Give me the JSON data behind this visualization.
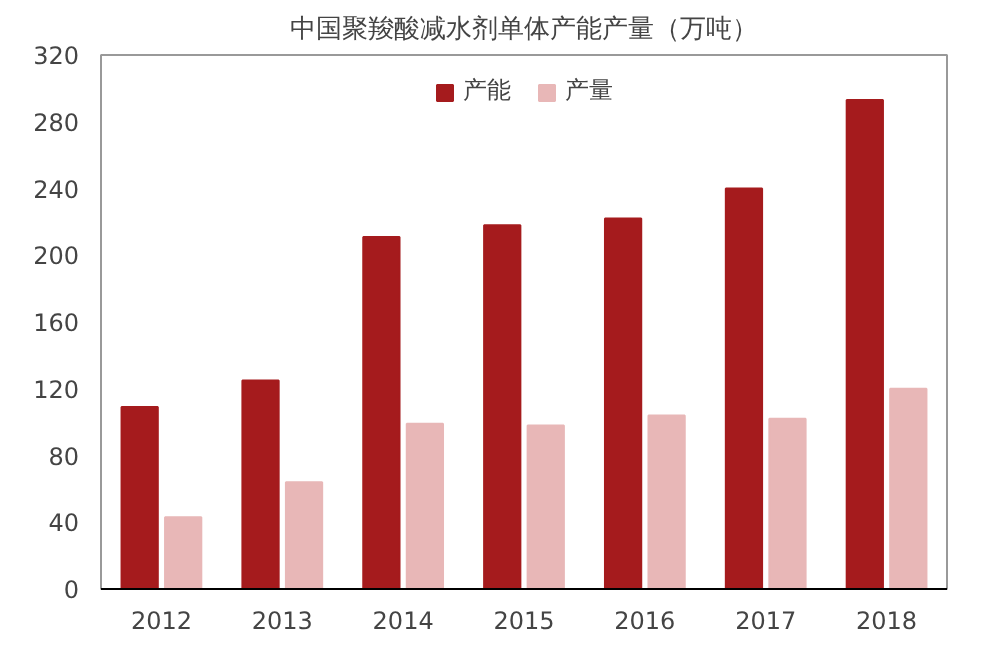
{
  "chart_data": {
    "type": "bar",
    "title": "中国聚羧酸减水剂单体产能产量（万吨）",
    "categories": [
      "2012",
      "2013",
      "2014",
      "2015",
      "2016",
      "2017",
      "2018"
    ],
    "series": [
      {
        "name": "产能",
        "color": "#a51b1d",
        "values": [
          109,
          125,
          211,
          218,
          222,
          240,
          293
        ]
      },
      {
        "name": "产量",
        "color": "#e8b7b7",
        "values": [
          43,
          64,
          99,
          98,
          104,
          102,
          120
        ]
      }
    ],
    "ylim": [
      0,
      320
    ],
    "yticks": [
      0,
      40,
      80,
      120,
      160,
      200,
      240,
      280,
      320
    ],
    "grid": false,
    "legend": "top"
  }
}
